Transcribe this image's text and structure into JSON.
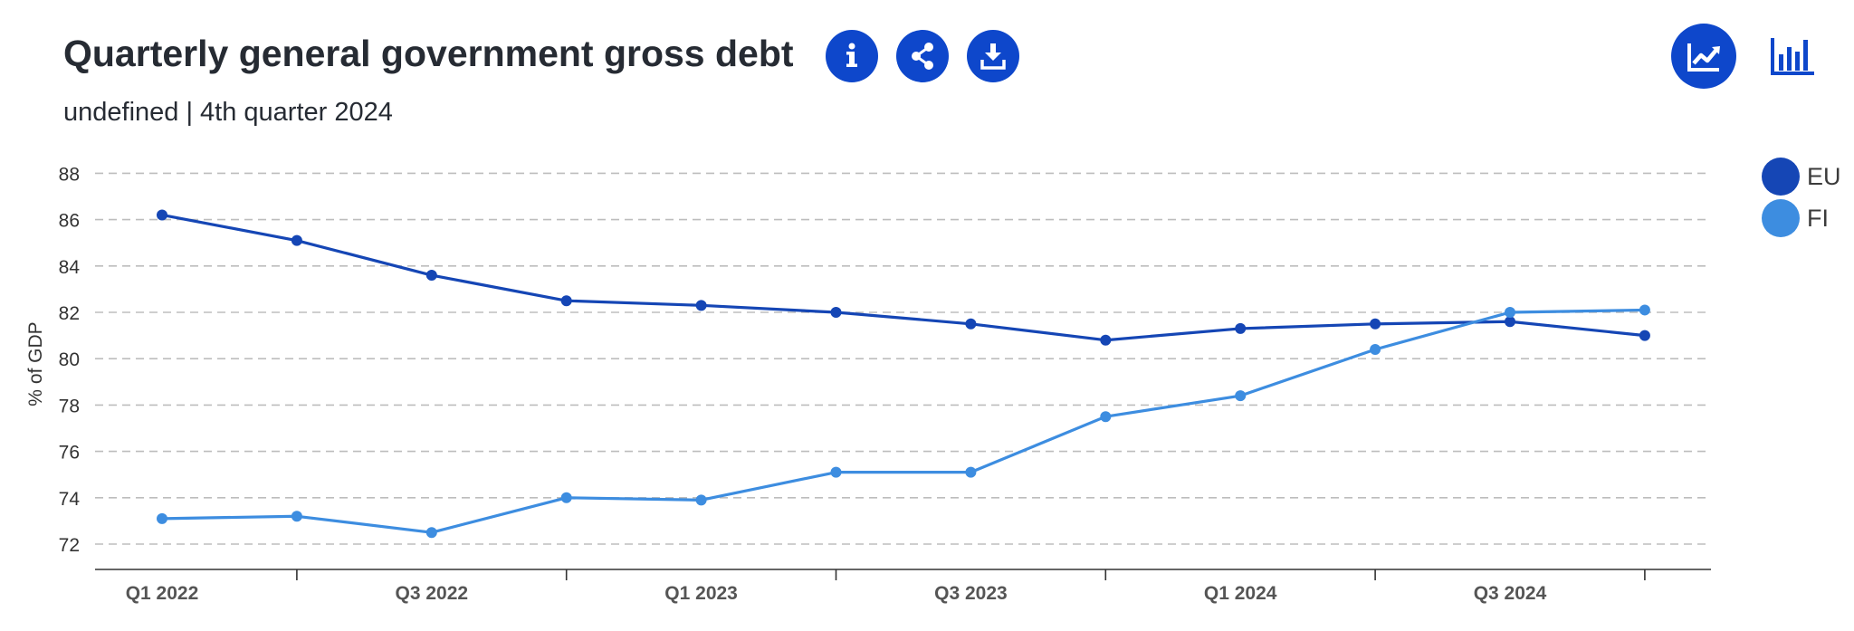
{
  "header": {
    "title": "Quarterly general government gross debt",
    "subtitle": "undefined | 4th quarter 2024"
  },
  "toolbar": {
    "info_icon": "info-icon",
    "share_icon": "share-icon",
    "download_icon": "download-icon",
    "line_chart_icon": "line-chart-icon",
    "bar_chart_icon": "bar-chart-icon"
  },
  "colors": {
    "accent": "#0e47cb",
    "eu": "#1546b5",
    "fi": "#3d8de0",
    "grid": "#bdbdbd",
    "axis": "#333333"
  },
  "chart_data": {
    "type": "line",
    "title": "Quarterly general government gross debt",
    "subtitle": "undefined | 4th quarter 2024",
    "xlabel": "",
    "ylabel": "% of GDP",
    "x": [
      "Q1 2022",
      "Q2 2022",
      "Q3 2022",
      "Q4 2022",
      "Q1 2023",
      "Q2 2023",
      "Q3 2023",
      "Q4 2023",
      "Q1 2024",
      "Q2 2024",
      "Q3 2024",
      "Q4 2024"
    ],
    "x_tick_labels": [
      "Q1 2022",
      "Q3 2022",
      "Q1 2023",
      "Q3 2023",
      "Q1 2024",
      "Q3 2024"
    ],
    "y_ticks": [
      72,
      74,
      76,
      78,
      80,
      82,
      84,
      86,
      88
    ],
    "ylim": [
      71,
      88
    ],
    "grid": true,
    "legend_position": "right",
    "series": [
      {
        "name": "EU",
        "color": "#1546b5",
        "values": [
          86.2,
          85.1,
          83.6,
          82.5,
          82.3,
          82.0,
          81.5,
          80.8,
          81.3,
          81.5,
          81.6,
          81.0
        ]
      },
      {
        "name": "FI",
        "color": "#3d8de0",
        "values": [
          73.1,
          73.2,
          72.5,
          74.0,
          73.9,
          75.1,
          75.1,
          77.5,
          78.4,
          80.4,
          82.0,
          82.1
        ]
      }
    ]
  }
}
